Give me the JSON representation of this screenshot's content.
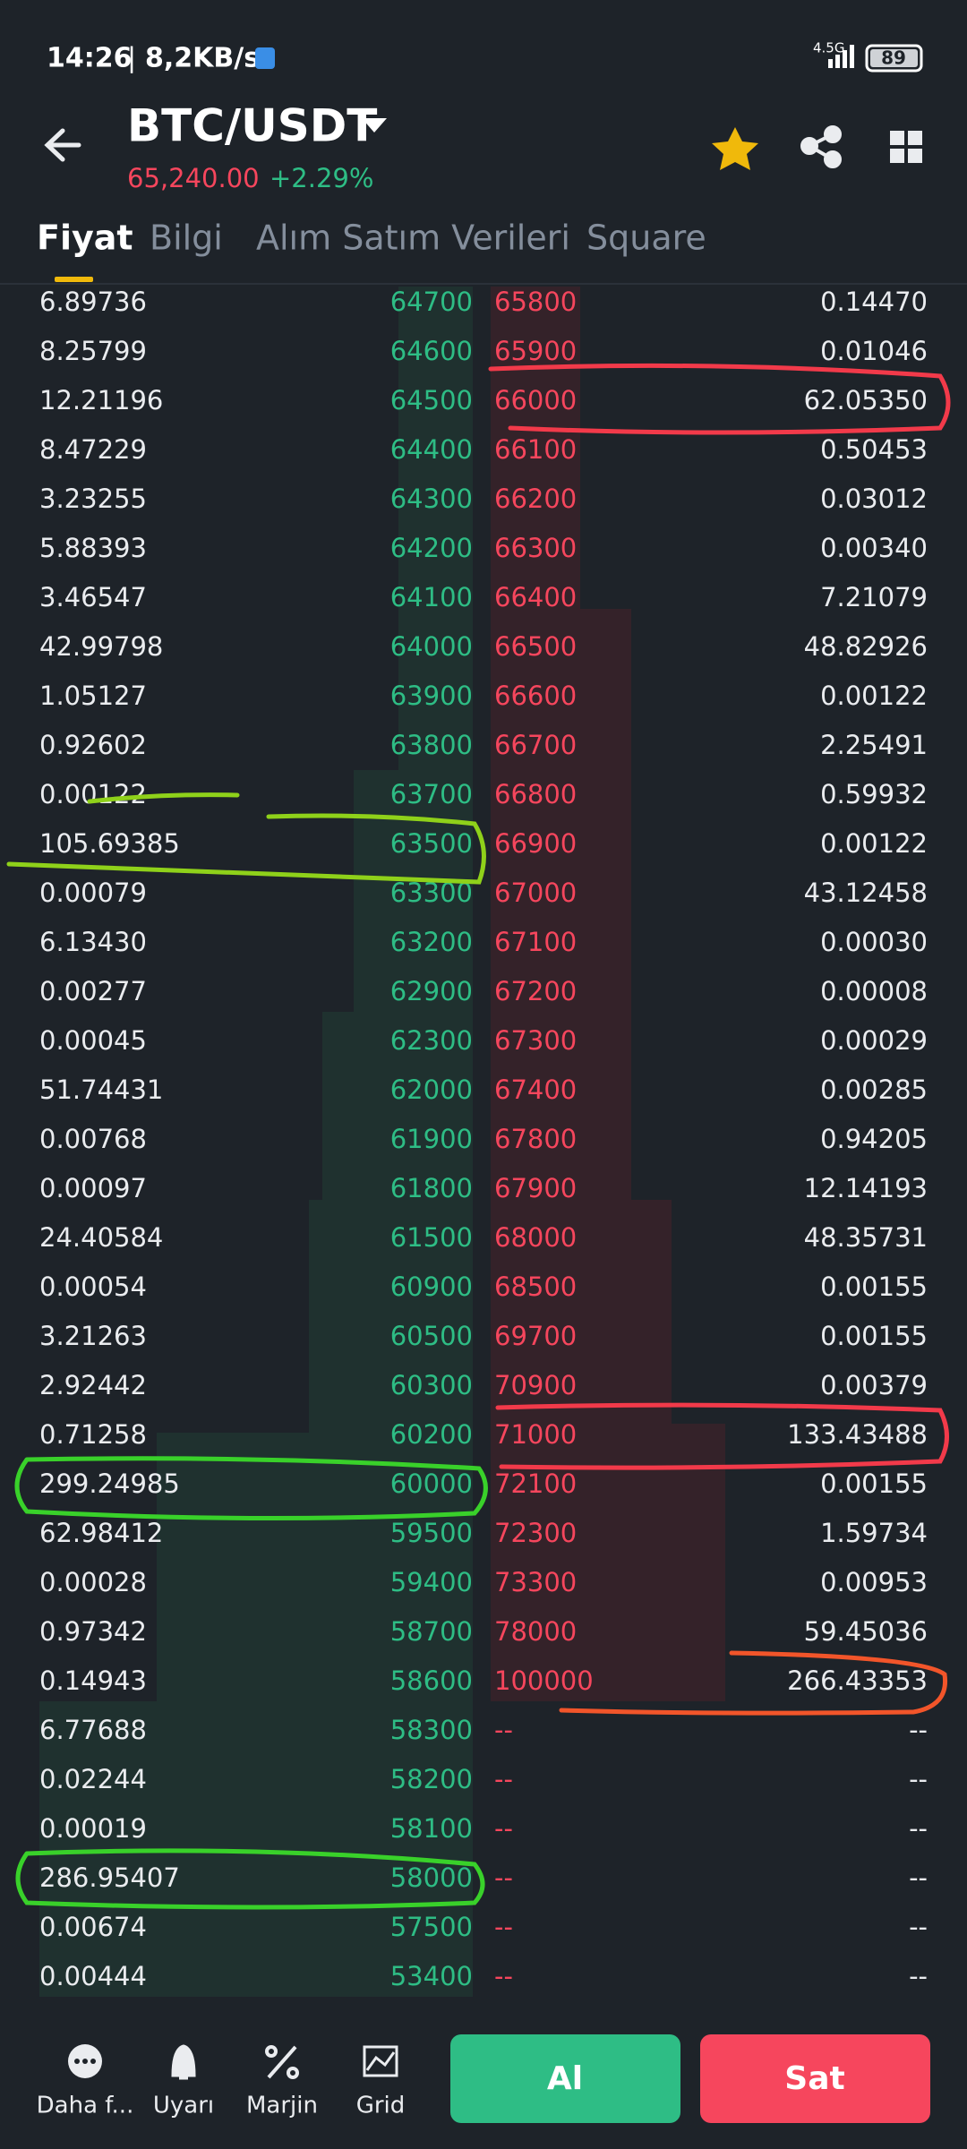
{
  "status_bar": {
    "time": "14:26",
    "speed": "8,2KB/s",
    "network": "4.5G",
    "battery": "89"
  },
  "header": {
    "title": "BTC/USDT",
    "price": "65,240.00",
    "change": "+2.29%"
  },
  "tabs": [
    "Fiyat",
    "Bilgi",
    "Alım Satım Verileri",
    "Square"
  ],
  "book": {
    "rows": [
      [
        "6.89736",
        "64700",
        "65800",
        "0.14470"
      ],
      [
        "8.25799",
        "64600",
        "65900",
        "0.01046"
      ],
      [
        "12.21196",
        "64500",
        "66000",
        "62.05350"
      ],
      [
        "8.47229",
        "64400",
        "66100",
        "0.50453"
      ],
      [
        "3.23255",
        "64300",
        "66200",
        "0.03012"
      ],
      [
        "5.88393",
        "64200",
        "66300",
        "0.00340"
      ],
      [
        "3.46547",
        "64100",
        "66400",
        "7.21079"
      ],
      [
        "42.99798",
        "64000",
        "66500",
        "48.82926"
      ],
      [
        "1.05127",
        "63900",
        "66600",
        "0.00122"
      ],
      [
        "0.92602",
        "63800",
        "66700",
        "2.25491"
      ],
      [
        "0.00122",
        "63700",
        "66800",
        "0.59932"
      ],
      [
        "105.69385",
        "63500",
        "66900",
        "0.00122"
      ],
      [
        "0.00079",
        "63300",
        "67000",
        "43.12458"
      ],
      [
        "6.13430",
        "63200",
        "67100",
        "0.00030"
      ],
      [
        "0.00277",
        "62900",
        "67200",
        "0.00008"
      ],
      [
        "0.00045",
        "62300",
        "67300",
        "0.00029"
      ],
      [
        "51.74431",
        "62000",
        "67400",
        "0.00285"
      ],
      [
        "0.00768",
        "61900",
        "67800",
        "0.94205"
      ],
      [
        "0.00097",
        "61800",
        "67900",
        "12.14193"
      ],
      [
        "24.40584",
        "61500",
        "68000",
        "48.35731"
      ],
      [
        "0.00054",
        "60900",
        "68500",
        "0.00155"
      ],
      [
        "3.21263",
        "60500",
        "69700",
        "0.00155"
      ],
      [
        "2.92442",
        "60300",
        "70900",
        "0.00379"
      ],
      [
        "0.71258",
        "60200",
        "71000",
        "133.43488"
      ],
      [
        "299.24985",
        "60000",
        "72100",
        "0.00155"
      ],
      [
        "62.98412",
        "59500",
        "72300",
        "1.59734"
      ],
      [
        "0.00028",
        "59400",
        "73300",
        "0.00953"
      ],
      [
        "0.97342",
        "58700",
        "78000",
        "59.45036"
      ],
      [
        "0.14943",
        "58600",
        "100000",
        "266.43353"
      ],
      [
        "6.77688",
        "58300",
        "--",
        "--"
      ],
      [
        "0.02244",
        "58200",
        "--",
        "--"
      ],
      [
        "0.00019",
        "58100",
        "--",
        "--"
      ],
      [
        "286.95407",
        "58000",
        "--",
        "--"
      ],
      [
        "0.00674",
        "57500",
        "--",
        "--"
      ],
      [
        "0.00444",
        "53400",
        "--",
        "--"
      ]
    ]
  },
  "bottom_bar": {
    "items": [
      "Daha f...",
      "Uyarı",
      "Marjin",
      "Grid"
    ],
    "buy": "Al",
    "sell": "Sat"
  }
}
